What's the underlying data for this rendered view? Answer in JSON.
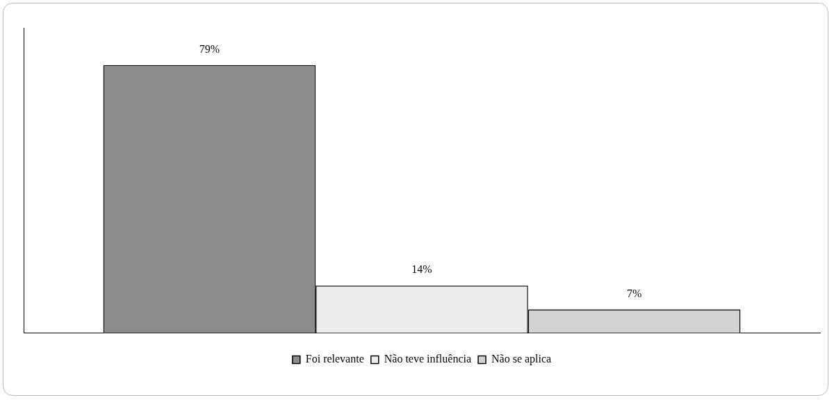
{
  "chart_data": {
    "type": "bar",
    "categories": [
      null
    ],
    "series": [
      {
        "name": "Foi relevante",
        "color": "#8c8c8c",
        "values": [
          79
        ],
        "value_labels": [
          "79%"
        ]
      },
      {
        "name": "Não teve influência",
        "color": "#ececec",
        "values": [
          14
        ],
        "value_labels": [
          "14%"
        ]
      },
      {
        "name": "Não se aplica",
        "color": "#d2d2d2",
        "values": [
          7
        ],
        "value_labels": [
          "7%"
        ]
      }
    ],
    "ylim": [
      0,
      90
    ],
    "grid": false,
    "legend": "bottom"
  }
}
